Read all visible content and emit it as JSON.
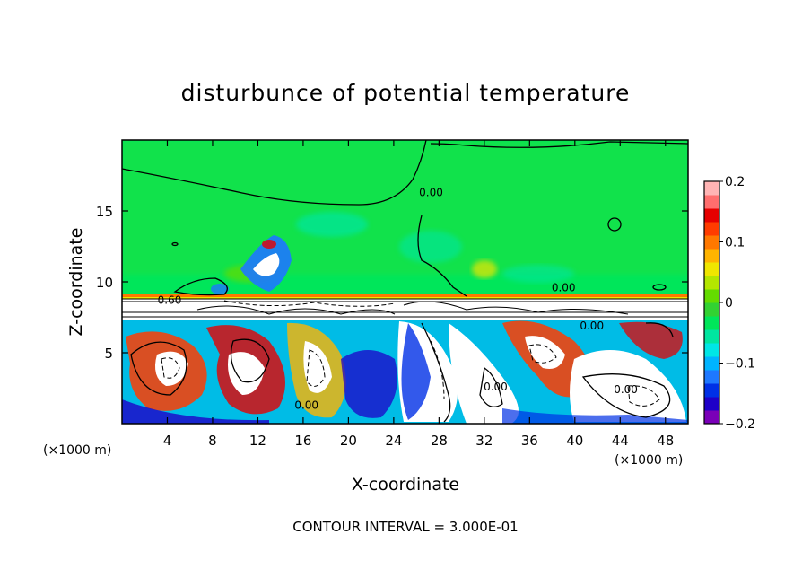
{
  "chart_data": {
    "type": "heatmap",
    "title": "disturbunce of potential temperature",
    "xlabel": "X-coordinate",
    "ylabel": "Z-coordinate",
    "x_unit": "(×1000 m)",
    "xlim": [
      0,
      50
    ],
    "ylim": [
      0,
      20
    ],
    "x_ticks": [
      4,
      8,
      12,
      16,
      20,
      24,
      28,
      32,
      36,
      40,
      44,
      48
    ],
    "y_ticks": [
      5,
      10,
      15
    ],
    "footer": "CONTOUR INTERVAL = 3.000E-01",
    "colorbar": {
      "range": [
        -0.2,
        0.2
      ],
      "tick_labels": [
        "0.2",
        "0.1",
        "0",
        "−0.1",
        "−0.2"
      ],
      "tick_values": [
        0.2,
        0.1,
        0,
        -0.1,
        -0.2
      ],
      "colors": [
        "#7a00b8",
        "#1e00c8",
        "#0030e6",
        "#1e78ff",
        "#00b4ff",
        "#00e6e6",
        "#00e6a0",
        "#00e65a",
        "#32d232",
        "#64dc00",
        "#b4e600",
        "#f0e600",
        "#ffb400",
        "#ff7800",
        "#ff3c00",
        "#e60000",
        "#ff6e6e",
        "#ffb4b4"
      ]
    },
    "contour_labels": [
      {
        "text": "0.60",
        "x": 4.2,
        "y": 8.7
      },
      {
        "text": "0.00",
        "x": 27.3,
        "y": 16.3
      },
      {
        "text": "0.00",
        "x": 16.3,
        "y": 1.3
      },
      {
        "text": "0.00",
        "x": 33.0,
        "y": 2.6
      },
      {
        "text": "0.00",
        "x": 41.5,
        "y": 6.9
      },
      {
        "text": "0.00",
        "x": 44.5,
        "y": 2.4
      },
      {
        "text": "0.00",
        "x": 39.0,
        "y": 9.6
      }
    ]
  }
}
